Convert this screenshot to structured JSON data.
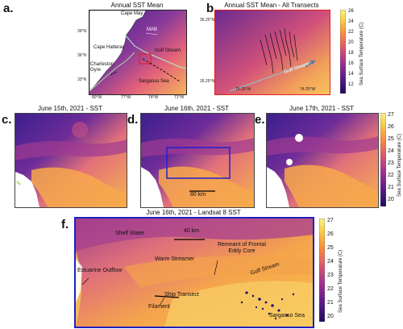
{
  "figure": {
    "panel_a": {
      "letter": "a.",
      "title": "Annual SST Mean",
      "lat_ticks": [
        "39°N",
        "36°N",
        "33°N"
      ],
      "lon_ticks": [
        "80°W",
        "77°W",
        "74°W",
        "71°W"
      ],
      "labels": {
        "cape_may": "Cape May",
        "mab": "MAB",
        "cape_hatteras": "Cape Hatteras",
        "gulf_stream": "Gulf Stream",
        "charleston_gyre": "Charleston Gyre",
        "sargasso_sea": "Sargasso Sea"
      }
    },
    "panel_b": {
      "letter": "b.",
      "title": "Annual SST Mean - All Transects",
      "lat_ticks": [
        "36.25°N",
        "35.25°N"
      ],
      "lon_ticks": [
        "75.25°W",
        "74.25°W"
      ],
      "labels": {
        "gulf_stream": "Gulf Stream"
      },
      "colorbar": {
        "label": "Sea Surface Temperature (C)",
        "ticks": [
          "26",
          "24",
          "22",
          "20",
          "18",
          "16",
          "14",
          "12"
        ],
        "colors": [
          "#1c0d5c",
          "#5a1a8a",
          "#a3338e",
          "#e0586a",
          "#f98e3e",
          "#f9cf4a",
          "#fbf08e"
        ]
      }
    },
    "panel_c": {
      "letter": "c.",
      "title": "June 15th, 2021 - SST"
    },
    "panel_d": {
      "letter": "d.",
      "title": "June 16th, 2021 - SST",
      "scale": "80 km"
    },
    "panel_e": {
      "letter": "e.",
      "title": "June 17th, 2021 - SST",
      "colorbar": {
        "label": "Sea Surface Temperature (C)",
        "ticks": [
          "27",
          "26",
          "25",
          "24",
          "23",
          "22",
          "21",
          "20"
        ]
      }
    },
    "panel_f": {
      "letter": "f.",
      "title": "June 16th, 2021 - Landsat 8 SST",
      "scale": "40 km",
      "labels": {
        "shelf_water": "Shelf Water",
        "remnant": "Remnant of Frontal\nEddy Core",
        "warm_streamer": "Warm Streamer",
        "estuarine_outflow": "Estuarine Outflow",
        "gulf_stream": "Gulf Stream",
        "ship_transect": "Ship Transect",
        "filament": "Filament",
        "sargasso_sea": "Sargasso Sea"
      },
      "colorbar": {
        "label": "Sea Surface Temperature (C)",
        "ticks": [
          "27",
          "26",
          "25",
          "24",
          "23",
          "22",
          "21",
          "20"
        ]
      }
    }
  }
}
